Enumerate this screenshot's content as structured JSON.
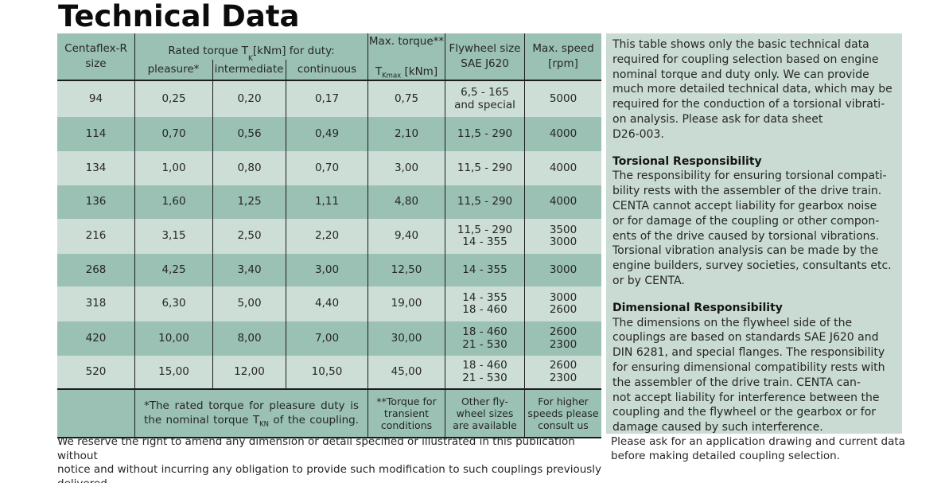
{
  "page": {
    "title": "Technical Data"
  },
  "table": {
    "header": {
      "size_col": [
        "Centaflex-R",
        "size"
      ],
      "rated_prefix": "Rated torque T",
      "rated_sub": "K",
      "rated_suffix": " [kNm] for duty:",
      "duty_cols": [
        "pleasure*",
        "intermediate",
        "continuous"
      ],
      "max_torque_line1": "Max. torque**",
      "max_torque_t": "T",
      "max_torque_sub": "Kmax",
      "max_torque_unit": " [kNm]",
      "flywheel_col": [
        "Flywheel size",
        "SAE J620"
      ],
      "speed_col": [
        "Max. speed",
        "[rpm]"
      ]
    },
    "rows": [
      {
        "size": "94",
        "pleasure": "0,25",
        "intermediate": "0,20",
        "continuous": "0,17",
        "max_torque": "0,75",
        "flywheel": [
          "6,5 - 165",
          "and special"
        ],
        "speed": [
          "5000"
        ]
      },
      {
        "size": "114",
        "pleasure": "0,70",
        "intermediate": "0,56",
        "continuous": "0,49",
        "max_torque": "2,10",
        "flywheel": [
          "11,5 - 290"
        ],
        "speed": [
          "4000"
        ]
      },
      {
        "size": "134",
        "pleasure": "1,00",
        "intermediate": "0,80",
        "continuous": "0,70",
        "max_torque": "3,00",
        "flywheel": [
          "11,5 - 290"
        ],
        "speed": [
          "4000"
        ]
      },
      {
        "size": "136",
        "pleasure": "1,60",
        "intermediate": "1,25",
        "continuous": "1,11",
        "max_torque": "4,80",
        "flywheel": [
          "11,5 - 290"
        ],
        "speed": [
          "4000"
        ]
      },
      {
        "size": "216",
        "pleasure": "3,15",
        "intermediate": "2,50",
        "continuous": "2,20",
        "max_torque": "9,40",
        "flywheel": [
          "11,5 - 290",
          "14 - 355"
        ],
        "speed": [
          "3500",
          "3000"
        ]
      },
      {
        "size": "268",
        "pleasure": "4,25",
        "intermediate": "3,40",
        "continuous": "3,00",
        "max_torque": "12,50",
        "flywheel": [
          "14 - 355"
        ],
        "speed": [
          "3000"
        ]
      },
      {
        "size": "318",
        "pleasure": "6,30",
        "intermediate": "5,00",
        "continuous": "4,40",
        "max_torque": "19,00",
        "flywheel": [
          "14 - 355",
          "18 - 460"
        ],
        "speed": [
          "3000",
          "2600"
        ]
      },
      {
        "size": "420",
        "pleasure": "10,00",
        "intermediate": "8,00",
        "continuous": "7,00",
        "max_torque": "30,00",
        "flywheel": [
          "18 - 460",
          "21 - 530"
        ],
        "speed": [
          "2600",
          "2300"
        ]
      },
      {
        "size": "520",
        "pleasure": "15,00",
        "intermediate": "12,00",
        "continuous": "10,50",
        "max_torque": "45,00",
        "flywheel": [
          "18 - 460",
          "21 - 530"
        ],
        "speed": [
          "2600",
          "2300"
        ]
      }
    ],
    "footer": {
      "note_line1": "*The rated torque for pleasure duty is",
      "note_line2_prefix": "the nominal torque T",
      "note_line2_sub": "KN",
      "note_line2_suffix": " of the coupling.",
      "torque_note": [
        "**Torque for",
        "transient",
        "conditions"
      ],
      "flywheel_note": [
        "Other fly-",
        "wheel sizes",
        "are available"
      ],
      "speed_note": [
        "For higher",
        "speeds please",
        "consult us"
      ]
    }
  },
  "panel": {
    "intro": [
      "This table shows only the basic technical data",
      "required for coupling selection based on engine",
      "nominal torque and duty only. We can provide",
      "much more detailed technical data, which may be",
      "required for the conduction of a torsional vibrati-",
      "on analysis. Please ask for data sheet",
      "D26-003."
    ],
    "torsional_heading": "Torsional Responsibility",
    "torsional_body": [
      "The responsibility for ensuring torsional compati-",
      "bility rests with the assembler of the drive train.",
      "CENTA cannot accept liability for gearbox noise",
      "or for damage of the coupling or other compon-",
      "ents of the drive caused by torsional vibrations.",
      "Torsional vibration analysis can be made by the",
      "engine builders, survey societies, consultants etc.",
      "or by CENTA."
    ],
    "dimensional_heading": "Dimensional Responsibility",
    "dimensional_body": [
      "The dimensions on the flywheel side of the",
      "couplings are based on standards SAE J620 and",
      "DIN 6281, and special flanges. The responsibility",
      "for ensuring dimensional compatibility rests with",
      "the assembler of the drive train. CENTA can-",
      "not accept liability for interference between the",
      "coupling and the flywheel or the gearbox or for",
      "damage caused by such interference."
    ]
  },
  "bottom_notes": {
    "left": [
      "We reserve the right to amend any dimension or detail specified or illustrated in this publication without",
      "notice and without incurring any obligation to provide such modification to such couplings previously",
      "delivered."
    ],
    "right": [
      "Please ask for an application drawing and current data",
      "before making detailed coupling selection."
    ]
  },
  "colors": {
    "row_dark": "#9ac1b4",
    "row_light": "#cdded7",
    "panel_bg": "#c9dbd3",
    "line_color": "#1c1c1c",
    "text_color": "#262626"
  }
}
